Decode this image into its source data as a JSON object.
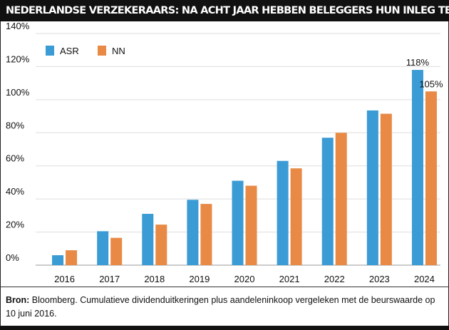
{
  "title": "NEDERLANDSE VERZEKERAARS: NA ACHT JAAR HEBBEN BELEGGERS HUN INLEG TERUG",
  "footer": {
    "source_label": "Bron:",
    "source_text": " Bloomberg. Cumulatieve dividenduitkeringen plus aandeleninkoop vergeleken met de beurswaarde op 10 juni 2016."
  },
  "chart_data": {
    "type": "bar",
    "title": "NEDERLANDSE VERZEKERAARS: NA ACHT JAAR HEBBEN BELEGGERS HUN INLEG TERUG",
    "categories": [
      "2016",
      "2017",
      "2018",
      "2019",
      "2020",
      "2021",
      "2022",
      "2023",
      "2024"
    ],
    "series": [
      {
        "name": "ASR",
        "color": "#3a9bd5",
        "values": [
          6,
          20.5,
          31,
          39.5,
          51,
          63,
          77,
          93.5,
          118
        ]
      },
      {
        "name": "NN",
        "color": "#e88a45",
        "values": [
          9,
          16.5,
          24.5,
          37,
          48,
          58.5,
          80,
          91.5,
          105
        ]
      }
    ],
    "ylim": [
      0,
      140
    ],
    "yticks": [
      "0%",
      "20%",
      "40%",
      "60%",
      "80%",
      "100%",
      "120%",
      "140%"
    ],
    "data_labels": [
      "118%",
      "105%"
    ],
    "xlabel": "",
    "ylabel": "",
    "grid": true,
    "legend_position": "top-left"
  }
}
